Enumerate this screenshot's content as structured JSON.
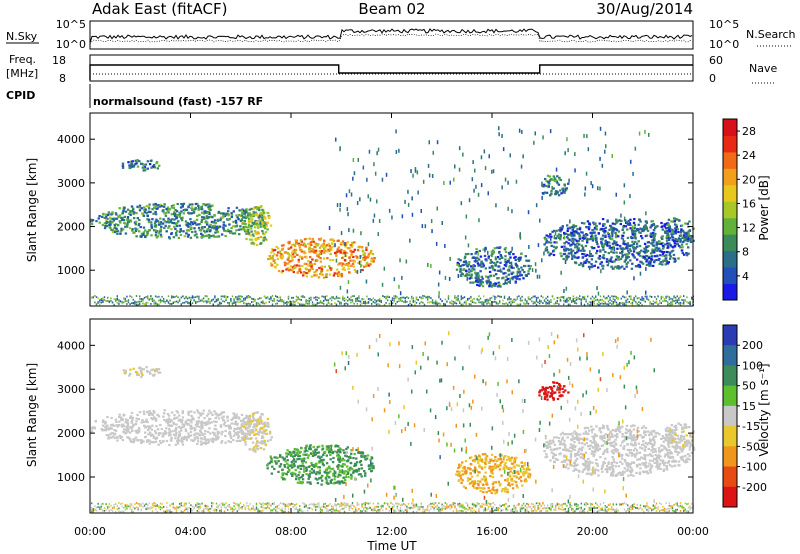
{
  "header": {
    "radar": "Adak East (fitACF)",
    "beam": "Beam 02",
    "date": "30/Aug/2014"
  },
  "nsky_panel": {
    "left_label": "N.Sky",
    "left_top": "10^5",
    "left_bottom": "10^0",
    "right_label": "N.Search",
    "right_top": "10^5",
    "right_bottom": "10^0"
  },
  "freq_panel": {
    "left_label": "Freq.",
    "left_unit": "[MHz]",
    "left_top": "18",
    "left_bottom": "8",
    "right_label": "Nave",
    "right_top": "60",
    "right_bottom": "0"
  },
  "cpid_panel": {
    "label": "CPID",
    "mode": "normalsound (fast) -157 RF"
  },
  "chart_data": [
    {
      "type": "heatmap",
      "name": "power",
      "ylabel": "Slant Range [km]",
      "y_ticks": [
        "1000",
        "2000",
        "3000",
        "4000"
      ],
      "y_tick_values": [
        1000,
        2000,
        3000,
        4000
      ],
      "ylim": [
        180,
        4600
      ],
      "xlim": [
        0,
        24
      ],
      "colorbar": {
        "label": "Power [dB]",
        "ticks": [
          "4",
          "8",
          "12",
          "16",
          "20",
          "24",
          "28"
        ],
        "tick_values": [
          4,
          8,
          12,
          16,
          20,
          24,
          28
        ],
        "range": [
          0,
          30
        ],
        "colors": [
          "#1a1ae6",
          "#2050b8",
          "#2a6e8a",
          "#3b8a5a",
          "#62b23a",
          "#a8c828",
          "#e8c81c",
          "#f0a01a",
          "#f06a18",
          "#e82a14",
          "#d8101a"
        ]
      },
      "regions": [
        {
          "t0": 0.0,
          "t1": 7.0,
          "r0": 1750,
          "r1": 2550,
          "value": 8
        },
        {
          "t0": 6.0,
          "t1": 7.2,
          "r0": 1600,
          "r1": 2500,
          "value": 14
        },
        {
          "t0": 1.2,
          "t1": 2.8,
          "r0": 3300,
          "r1": 3550,
          "value": 6
        },
        {
          "t0": 7.0,
          "t1": 11.3,
          "r0": 850,
          "r1": 1750,
          "value": 21
        },
        {
          "t0": 14.5,
          "t1": 17.5,
          "r0": 650,
          "r1": 1550,
          "value": 6
        },
        {
          "t0": 17.8,
          "t1": 19.0,
          "r0": 2700,
          "r1": 3200,
          "value": 7
        },
        {
          "t0": 18.0,
          "t1": 24.0,
          "r0": 1050,
          "r1": 2200,
          "value": 5
        },
        {
          "t0": 22.8,
          "t1": 24.0,
          "r0": 1700,
          "r1": 2250,
          "value": 6
        }
      ]
    },
    {
      "type": "heatmap",
      "name": "velocity",
      "ylabel": "Slant Range [km]",
      "y_ticks": [
        "1000",
        "2000",
        "3000",
        "4000"
      ],
      "y_tick_values": [
        1000,
        2000,
        3000,
        4000
      ],
      "ylim": [
        180,
        4600
      ],
      "xlim": [
        0,
        24
      ],
      "xlabel": "Time UT",
      "x_ticks": [
        "00:00",
        "04:00",
        "08:00",
        "12:00",
        "16:00",
        "20:00",
        "00:00"
      ],
      "x_tick_values": [
        0,
        4,
        8,
        12,
        16,
        20,
        24
      ],
      "colorbar": {
        "label": "Velocity [m s⁻¹]",
        "ticks": [
          "200",
          "100",
          "50",
          "15",
          "-15",
          "-50",
          "-100",
          "-200"
        ],
        "colors": [
          "#2a3cb4",
          "#2f6e9c",
          "#3c8c5a",
          "#5cc02e",
          "#c8c8c8",
          "#e8c82a",
          "#f0961c",
          "#e84a14",
          "#dc1414"
        ]
      },
      "regions": [
        {
          "t0": 0.0,
          "t1": 7.0,
          "r0": 1750,
          "r1": 2550,
          "value": 0
        },
        {
          "t0": 6.0,
          "t1": 7.2,
          "r0": 1600,
          "r1": 2500,
          "value": -10
        },
        {
          "t0": 1.2,
          "t1": 2.8,
          "r0": 3300,
          "r1": 3550,
          "value": -5
        },
        {
          "t0": 7.0,
          "t1": 11.3,
          "r0": 850,
          "r1": 1750,
          "value": 35
        },
        {
          "t0": 14.5,
          "t1": 17.5,
          "r0": 650,
          "r1": 1550,
          "value": -30
        },
        {
          "t0": 17.8,
          "t1": 19.0,
          "r0": 2700,
          "r1": 3200,
          "value": -180
        },
        {
          "t0": 18.0,
          "t1": 24.0,
          "r0": 1050,
          "r1": 2200,
          "value": 0
        },
        {
          "t0": 22.8,
          "t1": 24.0,
          "r0": 1700,
          "r1": 2250,
          "value": -5
        }
      ]
    }
  ]
}
